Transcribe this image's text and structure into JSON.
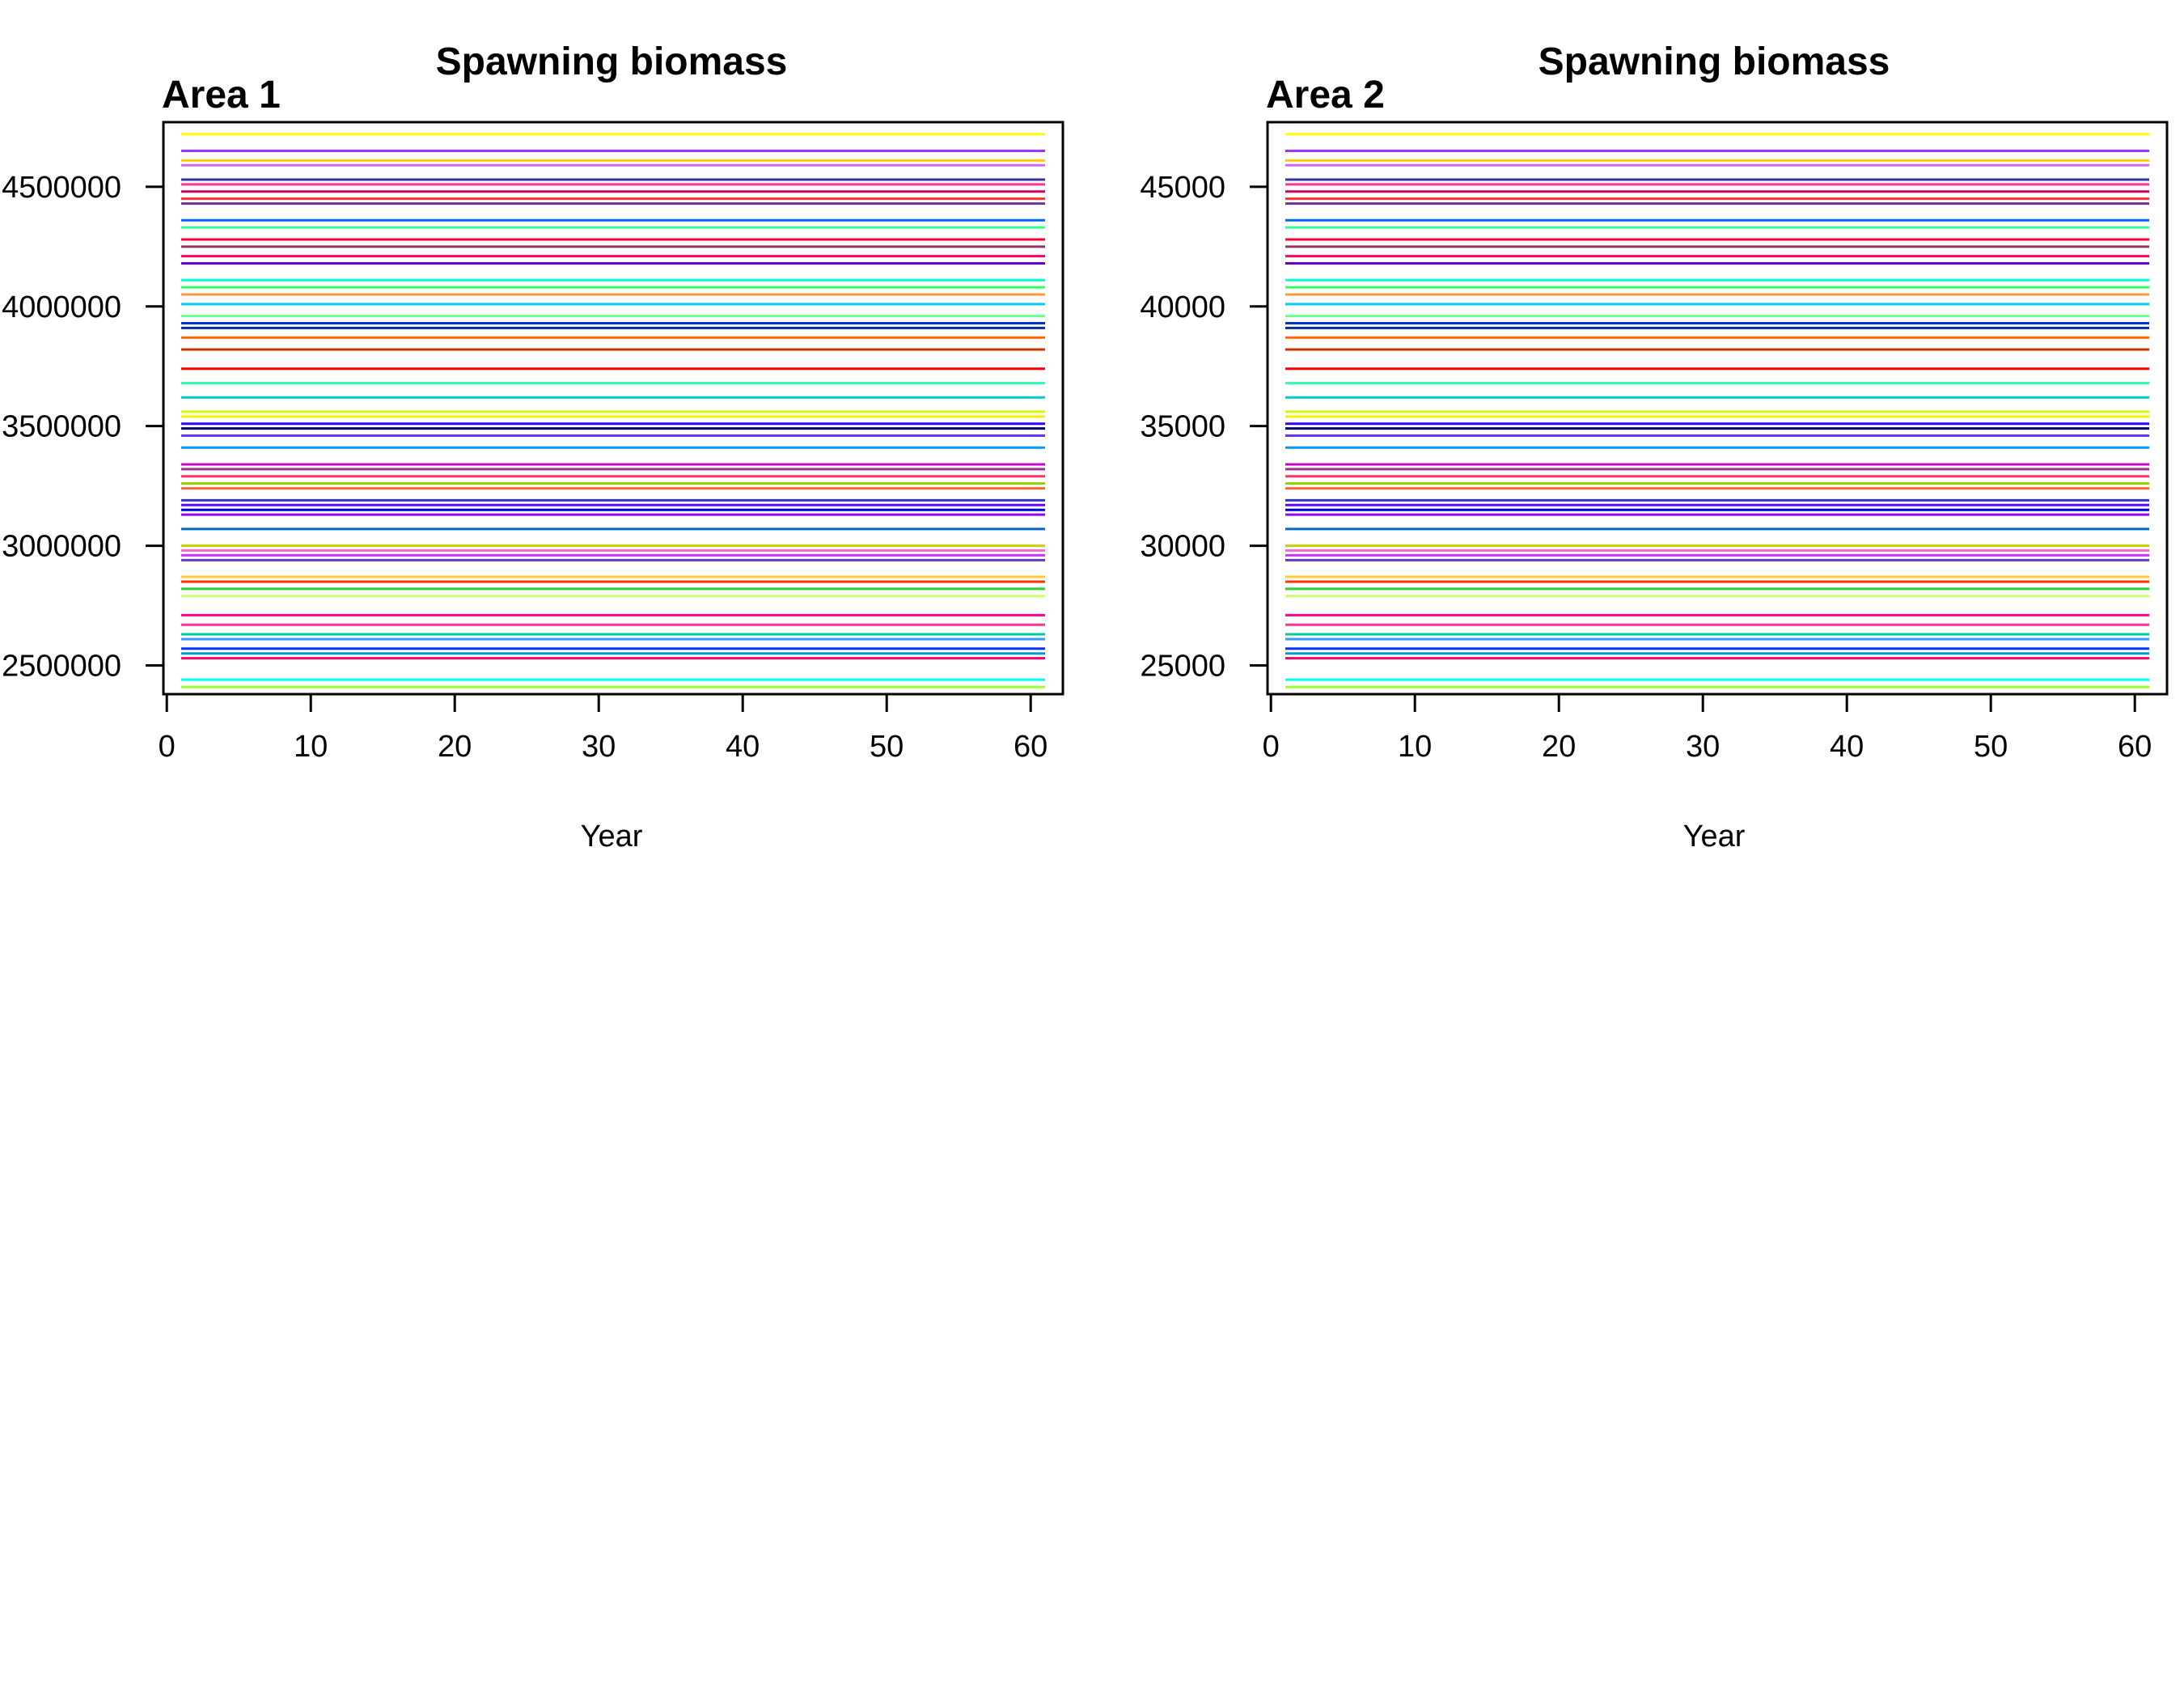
{
  "chart_data": [
    {
      "type": "line",
      "title": "Spawning biomass",
      "panel_label": "Area 1",
      "xlabel": "Year",
      "ylabel": "",
      "xlim": [
        1,
        61
      ],
      "ylim": [
        2380000,
        4770000
      ],
      "x_ticks": [
        0,
        10,
        20,
        30,
        40,
        50,
        60
      ],
      "x_tick_labels": [
        "0",
        "10",
        "20",
        "30",
        "40",
        "50",
        "60"
      ],
      "y_ticks": [
        2500000,
        3000000,
        3500000,
        4000000,
        4500000
      ],
      "y_tick_labels": [
        "2500000",
        "3000000",
        "3500000",
        "4000000",
        "4500000"
      ],
      "grid": false,
      "legend": "none",
      "x_range_of_series": [
        1,
        61
      ],
      "series_note_values": "each series is approximately constant over years 1-61",
      "series": [
        {
          "color": "#ffff00",
          "values": [
            4720000
          ]
        },
        {
          "color": "#9933ff",
          "values": [
            4650000
          ]
        },
        {
          "color": "#ffcc00",
          "values": [
            4610000
          ]
        },
        {
          "color": "#cc66ff",
          "values": [
            4590000
          ]
        },
        {
          "color": "#333399",
          "values": [
            4530000
          ]
        },
        {
          "color": "#ff3399",
          "values": [
            4510000
          ]
        },
        {
          "color": "#cc0066",
          "values": [
            4480000
          ]
        },
        {
          "color": "#ff3333",
          "values": [
            4450000
          ]
        },
        {
          "color": "#663399",
          "values": [
            4430000
          ]
        },
        {
          "color": "#0066ff",
          "values": [
            4360000
          ]
        },
        {
          "color": "#33ff99",
          "values": [
            4330000
          ]
        },
        {
          "color": "#ff0033",
          "values": [
            4280000
          ]
        },
        {
          "color": "#993366",
          "values": [
            4250000
          ]
        },
        {
          "color": "#ff0066",
          "values": [
            4210000
          ]
        },
        {
          "color": "#6600cc",
          "values": [
            4180000
          ]
        },
        {
          "color": "#00ffcc",
          "values": [
            4110000
          ]
        },
        {
          "color": "#33ff66",
          "values": [
            4080000
          ]
        },
        {
          "color": "#ff9933",
          "values": [
            4050000
          ]
        },
        {
          "color": "#00ccff",
          "values": [
            4010000
          ]
        },
        {
          "color": "#66ff99",
          "values": [
            3960000
          ]
        },
        {
          "color": "#0033cc",
          "values": [
            3930000
          ]
        },
        {
          "color": "#003399",
          "values": [
            3910000
          ]
        },
        {
          "color": "#ff6600",
          "values": [
            3870000
          ]
        },
        {
          "color": "#cc3300",
          "values": [
            3820000
          ]
        },
        {
          "color": "#ff0000",
          "values": [
            3740000
          ]
        },
        {
          "color": "#33ffaa",
          "values": [
            3680000
          ]
        },
        {
          "color": "#00cccc",
          "values": [
            3620000
          ]
        },
        {
          "color": "#ccff00",
          "values": [
            3560000
          ]
        },
        {
          "color": "#ffee00",
          "values": [
            3540000
          ]
        },
        {
          "color": "#3300ff",
          "values": [
            3510000
          ]
        },
        {
          "color": "#000066",
          "values": [
            3490000
          ]
        },
        {
          "color": "#6633ff",
          "values": [
            3460000
          ]
        },
        {
          "color": "#0099ff",
          "values": [
            3410000
          ]
        },
        {
          "color": "#cc00cc",
          "values": [
            3340000
          ]
        },
        {
          "color": "#993399",
          "values": [
            3320000
          ]
        },
        {
          "color": "#ff3366",
          "values": [
            3290000
          ]
        },
        {
          "color": "#99cc00",
          "values": [
            3260000
          ]
        },
        {
          "color": "#ff6633",
          "values": [
            3240000
          ]
        },
        {
          "color": "#3333cc",
          "values": [
            3190000
          ]
        },
        {
          "color": "#6600ff",
          "values": [
            3170000
          ]
        },
        {
          "color": "#0000cc",
          "values": [
            3150000
          ]
        },
        {
          "color": "#9900ff",
          "values": [
            3130000
          ]
        },
        {
          "color": "#0066cc",
          "values": [
            3070000
          ]
        },
        {
          "color": "#cccc00",
          "values": [
            3000000
          ]
        },
        {
          "color": "#ff66cc",
          "values": [
            2980000
          ]
        },
        {
          "color": "#cc33ff",
          "values": [
            2960000
          ]
        },
        {
          "color": "#6633cc",
          "values": [
            2940000
          ]
        },
        {
          "color": "#ffcc33",
          "values": [
            2870000
          ]
        },
        {
          "color": "#ff3300",
          "values": [
            2850000
          ]
        },
        {
          "color": "#33cc33",
          "values": [
            2820000
          ]
        },
        {
          "color": "#ccff66",
          "values": [
            2790000
          ]
        },
        {
          "color": "#ff0099",
          "values": [
            2710000
          ]
        },
        {
          "color": "#ff3399",
          "values": [
            2670000
          ]
        },
        {
          "color": "#00cc99",
          "values": [
            2630000
          ]
        },
        {
          "color": "#3399ff",
          "values": [
            2610000
          ]
        },
        {
          "color": "#0033ff",
          "values": [
            2570000
          ]
        },
        {
          "color": "#0099cc",
          "values": [
            2550000
          ]
        },
        {
          "color": "#ff0066",
          "values": [
            2530000
          ]
        },
        {
          "color": "#00ffff",
          "values": [
            2440000
          ]
        },
        {
          "color": "#99ff33",
          "values": [
            2410000
          ]
        }
      ]
    },
    {
      "type": "line",
      "title": "Spawning biomass",
      "panel_label": "Area 2",
      "xlabel": "Year",
      "ylabel": "",
      "xlim": [
        1,
        61
      ],
      "ylim": [
        23800,
        47700
      ],
      "x_ticks": [
        0,
        10,
        20,
        30,
        40,
        50,
        60
      ],
      "x_tick_labels": [
        "0",
        "10",
        "20",
        "30",
        "40",
        "50",
        "60"
      ],
      "y_ticks": [
        25000,
        30000,
        35000,
        40000,
        45000
      ],
      "y_tick_labels": [
        "25000",
        "30000",
        "35000",
        "40000",
        "45000"
      ],
      "grid": false,
      "legend": "none",
      "x_range_of_series": [
        1,
        61
      ],
      "series_note_values": "each series is approximately constant over years 1-61",
      "series": [
        {
          "color": "#ffff00",
          "values": [
            47200
          ]
        },
        {
          "color": "#9933ff",
          "values": [
            46500
          ]
        },
        {
          "color": "#ffcc00",
          "values": [
            46100
          ]
        },
        {
          "color": "#cc66ff",
          "values": [
            45900
          ]
        },
        {
          "color": "#333399",
          "values": [
            45300
          ]
        },
        {
          "color": "#ff3399",
          "values": [
            45100
          ]
        },
        {
          "color": "#cc0066",
          "values": [
            44800
          ]
        },
        {
          "color": "#ff3333",
          "values": [
            44500
          ]
        },
        {
          "color": "#663399",
          "values": [
            44300
          ]
        },
        {
          "color": "#0066ff",
          "values": [
            43600
          ]
        },
        {
          "color": "#33ff99",
          "values": [
            43300
          ]
        },
        {
          "color": "#ff0033",
          "values": [
            42800
          ]
        },
        {
          "color": "#993366",
          "values": [
            42500
          ]
        },
        {
          "color": "#ff0066",
          "values": [
            42100
          ]
        },
        {
          "color": "#6600cc",
          "values": [
            41800
          ]
        },
        {
          "color": "#00ffcc",
          "values": [
            41100
          ]
        },
        {
          "color": "#33ff66",
          "values": [
            40800
          ]
        },
        {
          "color": "#ff9933",
          "values": [
            40500
          ]
        },
        {
          "color": "#00ccff",
          "values": [
            40100
          ]
        },
        {
          "color": "#66ff99",
          "values": [
            39600
          ]
        },
        {
          "color": "#0033cc",
          "values": [
            39300
          ]
        },
        {
          "color": "#003399",
          "values": [
            39100
          ]
        },
        {
          "color": "#ff6600",
          "values": [
            38700
          ]
        },
        {
          "color": "#cc3300",
          "values": [
            38200
          ]
        },
        {
          "color": "#ff0000",
          "values": [
            37400
          ]
        },
        {
          "color": "#33ffaa",
          "values": [
            36800
          ]
        },
        {
          "color": "#00cccc",
          "values": [
            36200
          ]
        },
        {
          "color": "#ccff00",
          "values": [
            35600
          ]
        },
        {
          "color": "#ffee00",
          "values": [
            35400
          ]
        },
        {
          "color": "#3300ff",
          "values": [
            35100
          ]
        },
        {
          "color": "#000066",
          "values": [
            34900
          ]
        },
        {
          "color": "#6633ff",
          "values": [
            34600
          ]
        },
        {
          "color": "#0099ff",
          "values": [
            34100
          ]
        },
        {
          "color": "#cc00cc",
          "values": [
            33400
          ]
        },
        {
          "color": "#993399",
          "values": [
            33200
          ]
        },
        {
          "color": "#ff3366",
          "values": [
            32900
          ]
        },
        {
          "color": "#99cc00",
          "values": [
            32600
          ]
        },
        {
          "color": "#ff6633",
          "values": [
            32400
          ]
        },
        {
          "color": "#3333cc",
          "values": [
            31900
          ]
        },
        {
          "color": "#6600ff",
          "values": [
            31700
          ]
        },
        {
          "color": "#0000cc",
          "values": [
            31500
          ]
        },
        {
          "color": "#9900ff",
          "values": [
            31300
          ]
        },
        {
          "color": "#0066cc",
          "values": [
            30700
          ]
        },
        {
          "color": "#cccc00",
          "values": [
            30000
          ]
        },
        {
          "color": "#ff66cc",
          "values": [
            29800
          ]
        },
        {
          "color": "#cc33ff",
          "values": [
            29600
          ]
        },
        {
          "color": "#6633cc",
          "values": [
            29400
          ]
        },
        {
          "color": "#ffcc33",
          "values": [
            28700
          ]
        },
        {
          "color": "#ff3300",
          "values": [
            28500
          ]
        },
        {
          "color": "#33cc33",
          "values": [
            28200
          ]
        },
        {
          "color": "#ccff66",
          "values": [
            27900
          ]
        },
        {
          "color": "#ff0099",
          "values": [
            27100
          ]
        },
        {
          "color": "#ff3399",
          "values": [
            26700
          ]
        },
        {
          "color": "#00cc99",
          "values": [
            26300
          ]
        },
        {
          "color": "#3399ff",
          "values": [
            26100
          ]
        },
        {
          "color": "#0033ff",
          "values": [
            25700
          ]
        },
        {
          "color": "#0099cc",
          "values": [
            25500
          ]
        },
        {
          "color": "#ff0066",
          "values": [
            25300
          ]
        },
        {
          "color": "#00ffff",
          "values": [
            24400
          ]
        },
        {
          "color": "#99ff33",
          "values": [
            24100
          ]
        }
      ]
    }
  ]
}
